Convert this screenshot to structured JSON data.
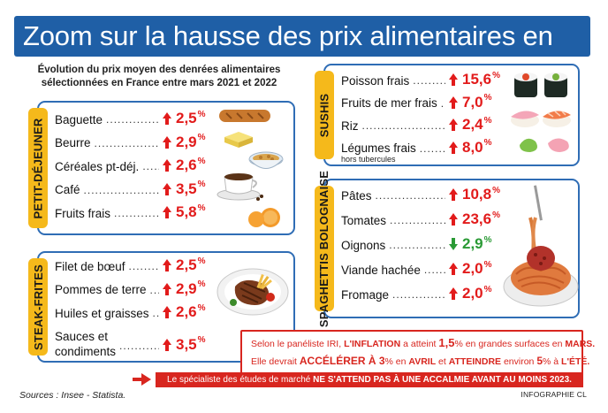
{
  "title": "Zoom sur la hausse des prix alimentaires en France",
  "subtitle_line1": "Évolution du prix moyen des denrées alimentaires",
  "subtitle_line2": "sélectionnées en France entre mars 2021 et 2022",
  "colors": {
    "title_bg": "#1f5fa6",
    "panel_border": "#2f6db5",
    "tab": "#f5b91b",
    "up": "#e21b1b",
    "down": "#2a9a35",
    "alert": "#d8261f"
  },
  "chart_data": {
    "type": "table",
    "unit": "%",
    "groups": [
      {
        "name": "PETIT-DÉJEUNER",
        "items": [
          {
            "label": "Baguette",
            "value": 2.5,
            "display": "2,5",
            "direction": "up"
          },
          {
            "label": "Beurre",
            "value": 2.9,
            "display": "2,9",
            "direction": "up"
          },
          {
            "label": "Céréales pt-déj.",
            "value": 2.6,
            "display": "2,6",
            "direction": "up"
          },
          {
            "label": "Café",
            "value": 3.5,
            "display": "3,5",
            "direction": "up"
          },
          {
            "label": "Fruits frais",
            "value": 5.8,
            "display": "5,8",
            "direction": "up"
          }
        ]
      },
      {
        "name": "STEAK-FRITES",
        "items": [
          {
            "label": "Filet de bœuf",
            "value": 2.5,
            "display": "2,5",
            "direction": "up"
          },
          {
            "label": "Pommes de terre",
            "value": 2.9,
            "display": "2,9",
            "direction": "up"
          },
          {
            "label": "Huiles et graisses",
            "value": 2.6,
            "display": "2,6",
            "direction": "up"
          },
          {
            "label": "Sauces et",
            "label2": "condiments",
            "value": 3.5,
            "display": "3,5",
            "direction": "up"
          }
        ]
      },
      {
        "name": "SUSHIS",
        "items": [
          {
            "label": "Poisson frais",
            "value": 15.6,
            "display": "15,6",
            "direction": "up"
          },
          {
            "label": "Fruits de mer frais",
            "value": 7.0,
            "display": "7,0",
            "direction": "up"
          },
          {
            "label": "Riz",
            "value": 2.4,
            "display": "2,4",
            "direction": "up"
          },
          {
            "label": "Légumes frais",
            "sublabel": "hors tubercules",
            "value": 8.0,
            "display": "8,0",
            "direction": "up"
          }
        ]
      },
      {
        "name": "SPAGHETTIS BOLOGNAISE",
        "items": [
          {
            "label": "Pâtes",
            "value": 10.8,
            "display": "10,8",
            "direction": "up"
          },
          {
            "label": "Tomates",
            "value": 23.6,
            "display": "23,6",
            "direction": "up"
          },
          {
            "label": "Oignons",
            "value": 2.9,
            "display": "2,9",
            "direction": "down"
          },
          {
            "label": "Viande hachée",
            "value": 2.0,
            "display": "2,0",
            "direction": "up"
          },
          {
            "label": "Fromage",
            "value": 2.0,
            "display": "2,0",
            "direction": "up"
          }
        ]
      }
    ]
  },
  "info": {
    "line1_a": "Selon le panéliste IRI, ",
    "line1_b": "L'INFLATION",
    "line1_c": " a atteint ",
    "line1_d": "1,5",
    "line1_e": "% en grandes surfaces en ",
    "line1_f": "MARS.",
    "line2_a": "Elle devrait ",
    "line2_b": "ACCÉLÉRER À 3",
    "line2_c": "% en ",
    "line2_d": "AVRIL",
    "line2_e": " et ",
    "line2_f": "ATTEINDRE",
    "line2_g": " environ ",
    "line2_h": "5",
    "line2_i": "% à ",
    "line2_j": "L'ÉTÉ."
  },
  "banner": {
    "text_a": "Le spécialiste des études de marché ",
    "text_b": "NE S'ATTEND PAS À UNE ACCALMIE AVANT AU MOINS 2023."
  },
  "sources": "Sources : Insee - Statista.",
  "credit": "INFOGRAPHIE CL"
}
